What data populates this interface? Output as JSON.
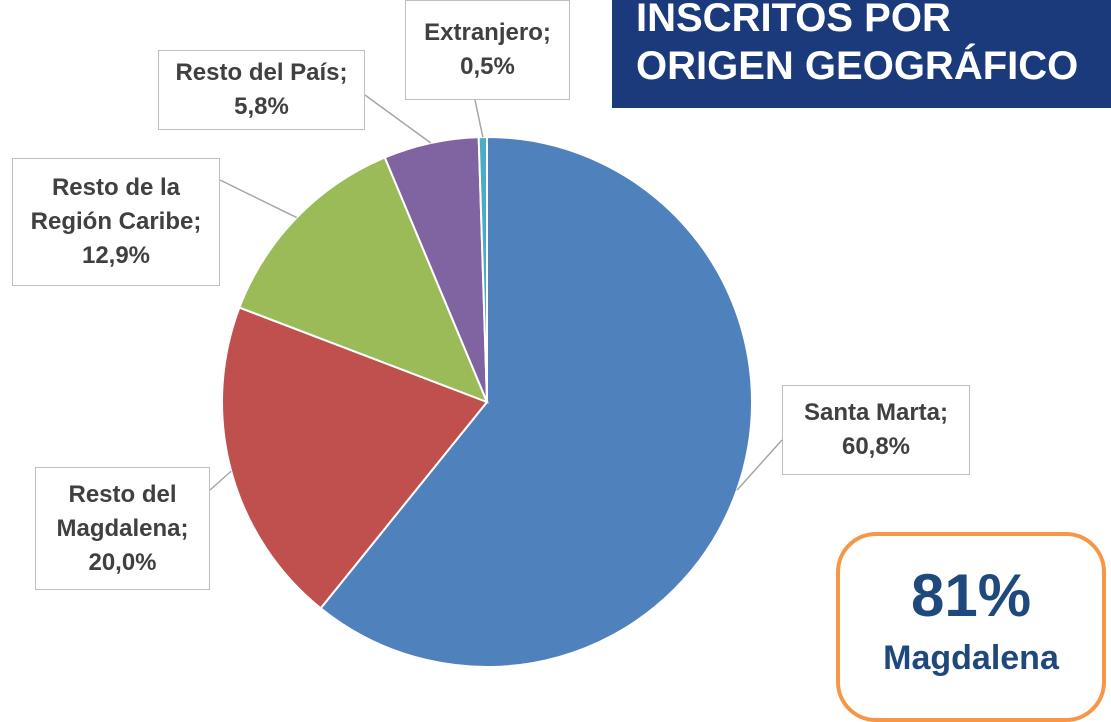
{
  "chart_data": {
    "type": "pie",
    "title": "INSCRITOS POR ORIGEN GEOGRÁFICO",
    "categories": [
      "Santa Marta;",
      "Resto del Magdalena;",
      "Resto de la Región Caribe;",
      "Resto del País;",
      "Extranjero;"
    ],
    "values": [
      60.8,
      20.0,
      12.9,
      5.8,
      0.5
    ],
    "value_labels": [
      "60,8%",
      "20,0%",
      "12,9%",
      "5,8%",
      "0,5%"
    ],
    "colors": [
      "#4f81bd",
      "#c0504d",
      "#9bbb59",
      "#8064a2",
      "#4bacc6"
    ],
    "annotations": [
      "81%",
      "Magdalena"
    ]
  }
}
